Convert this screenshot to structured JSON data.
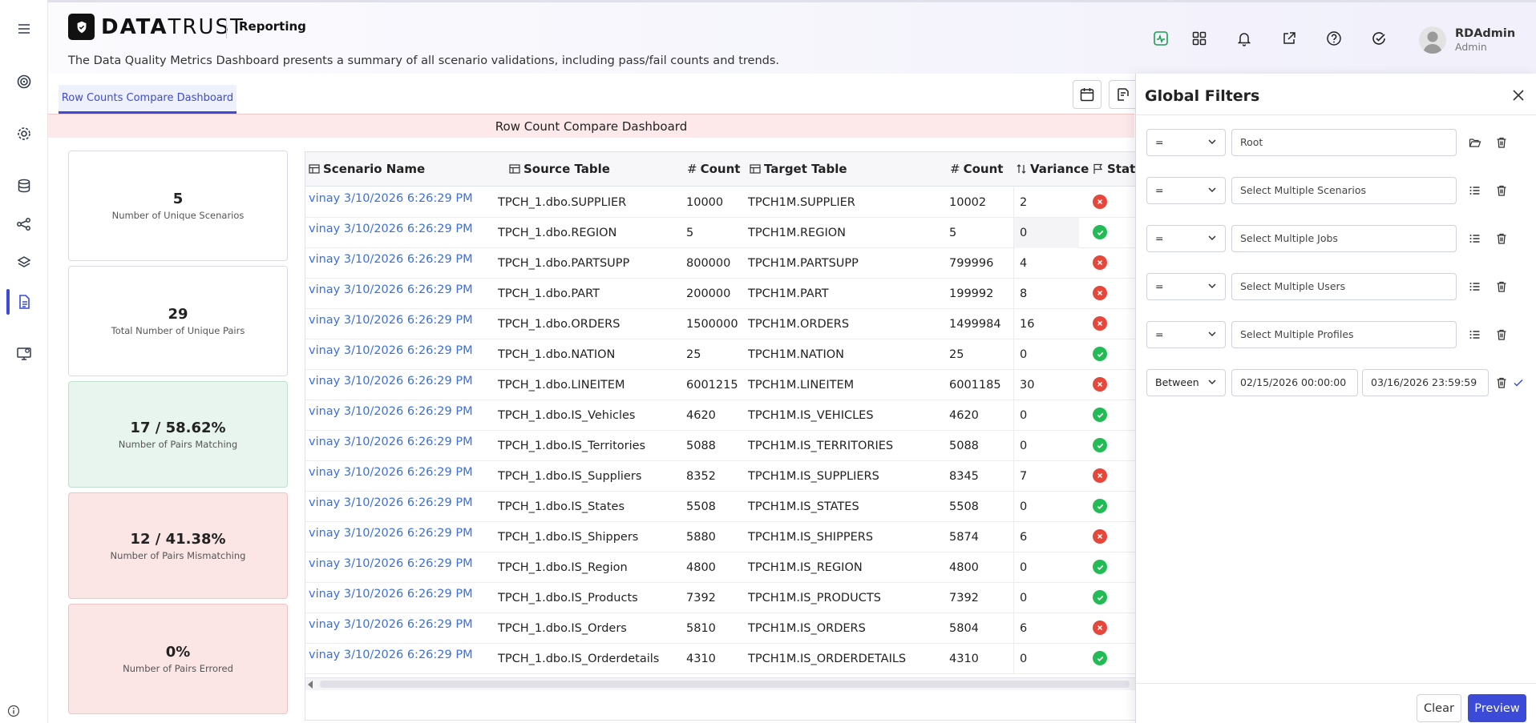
{
  "header": {
    "brand_prefix": "DATA",
    "brand_suffix": "TRUST",
    "section": "Reporting",
    "description": "The Data Quality Metrics Dashboard presents a summary of all scenario validations, including pass/fail counts and trends.",
    "user_name": "RDAdmin",
    "user_role": "Admin"
  },
  "tabs": [
    {
      "label": "Row Counts Compare Dashboard"
    }
  ],
  "dashboard_title": "Row Count Compare Dashboard",
  "cards": [
    {
      "value": "5",
      "label": "Number of Unique Scenarios"
    },
    {
      "value": "29",
      "label": "Total Number of Unique Pairs"
    },
    {
      "value": "17 / 58.62%",
      "label": "Number of Pairs Matching"
    },
    {
      "value": "12 / 41.38%",
      "label": "Number of Pairs Mismatching"
    },
    {
      "value": "0%",
      "label": "Number of Pairs Errored"
    }
  ],
  "table": {
    "headers": {
      "scenario": "Scenario Name",
      "source": "Source Table",
      "source_count": "Count",
      "target": "Target Table",
      "target_count": "Count",
      "variance": "Variance",
      "status": "Status"
    },
    "rows": [
      {
        "scenario": "vinay 3/10/2026 6:26:29 PM",
        "source": "TPCH_1.dbo.SUPPLIER",
        "source_count": "10000",
        "target": "TPCH1M.SUPPLIER",
        "target_count": "10002",
        "variance": "2",
        "status": "fail"
      },
      {
        "scenario": "vinay 3/10/2026 6:26:29 PM",
        "source": "TPCH_1.dbo.REGION",
        "source_count": "5",
        "target": "TPCH1M.REGION",
        "target_count": "5",
        "variance": "0",
        "status": "pass"
      },
      {
        "scenario": "vinay 3/10/2026 6:26:29 PM",
        "source": "TPCH_1.dbo.PARTSUPP",
        "source_count": "800000",
        "target": "TPCH1M.PARTSUPP",
        "target_count": "799996",
        "variance": "4",
        "status": "fail"
      },
      {
        "scenario": "vinay 3/10/2026 6:26:29 PM",
        "source": "TPCH_1.dbo.PART",
        "source_count": "200000",
        "target": "TPCH1M.PART",
        "target_count": "199992",
        "variance": "8",
        "status": "fail"
      },
      {
        "scenario": "vinay 3/10/2026 6:26:29 PM",
        "source": "TPCH_1.dbo.ORDERS",
        "source_count": "1500000",
        "target": "TPCH1M.ORDERS",
        "target_count": "1499984",
        "variance": "16",
        "status": "fail"
      },
      {
        "scenario": "vinay 3/10/2026 6:26:29 PM",
        "source": "TPCH_1.dbo.NATION",
        "source_count": "25",
        "target": "TPCH1M.NATION",
        "target_count": "25",
        "variance": "0",
        "status": "pass"
      },
      {
        "scenario": "vinay 3/10/2026 6:26:29 PM",
        "source": "TPCH_1.dbo.LINEITEM",
        "source_count": "6001215",
        "target": "TPCH1M.LINEITEM",
        "target_count": "6001185",
        "variance": "30",
        "status": "fail"
      },
      {
        "scenario": "vinay 3/10/2026 6:26:29 PM",
        "source": "TPCH_1.dbo.IS_Vehicles",
        "source_count": "4620",
        "target": "TPCH1M.IS_VEHICLES",
        "target_count": "4620",
        "variance": "0",
        "status": "pass"
      },
      {
        "scenario": "vinay 3/10/2026 6:26:29 PM",
        "source": "TPCH_1.dbo.IS_Territories",
        "source_count": "5088",
        "target": "TPCH1M.IS_TERRITORIES",
        "target_count": "5088",
        "variance": "0",
        "status": "pass"
      },
      {
        "scenario": "vinay 3/10/2026 6:26:29 PM",
        "source": "TPCH_1.dbo.IS_Suppliers",
        "source_count": "8352",
        "target": "TPCH1M.IS_SUPPLIERS",
        "target_count": "8345",
        "variance": "7",
        "status": "fail"
      },
      {
        "scenario": "vinay 3/10/2026 6:26:29 PM",
        "source": "TPCH_1.dbo.IS_States",
        "source_count": "5508",
        "target": "TPCH1M.IS_STATES",
        "target_count": "5508",
        "variance": "0",
        "status": "pass"
      },
      {
        "scenario": "vinay 3/10/2026 6:26:29 PM",
        "source": "TPCH_1.dbo.IS_Shippers",
        "source_count": "5880",
        "target": "TPCH1M.IS_SHIPPERS",
        "target_count": "5874",
        "variance": "6",
        "status": "fail"
      },
      {
        "scenario": "vinay 3/10/2026 6:26:29 PM",
        "source": "TPCH_1.dbo.IS_Region",
        "source_count": "4800",
        "target": "TPCH1M.IS_REGION",
        "target_count": "4800",
        "variance": "0",
        "status": "pass"
      },
      {
        "scenario": "vinay 3/10/2026 6:26:29 PM",
        "source": "TPCH_1.dbo.IS_Products",
        "source_count": "7392",
        "target": "TPCH1M.IS_PRODUCTS",
        "target_count": "7392",
        "variance": "0",
        "status": "pass"
      },
      {
        "scenario": "vinay 3/10/2026 6:26:29 PM",
        "source": "TPCH_1.dbo.IS_Orders",
        "source_count": "5810",
        "target": "TPCH1M.IS_ORDERS",
        "target_count": "5804",
        "variance": "6",
        "status": "fail"
      },
      {
        "scenario": "vinay 3/10/2026 6:26:29 PM",
        "source": "TPCH_1.dbo.IS_Orderdetails",
        "source_count": "4310",
        "target": "TPCH1M.IS_ORDERDETAILS",
        "target_count": "4310",
        "variance": "0",
        "status": "pass"
      }
    ]
  },
  "filters": {
    "title": "Global Filters",
    "rows": [
      {
        "operator": "=",
        "value": "Root"
      },
      {
        "operator": "=",
        "value": "Select Multiple Scenarios"
      },
      {
        "operator": "=",
        "value": "Select Multiple Jobs"
      },
      {
        "operator": "=",
        "value": "Select Multiple Users"
      },
      {
        "operator": "=",
        "value": "Select Multiple Profiles"
      }
    ],
    "date_filter": {
      "operator": "Between",
      "from": "02/15/2026 00:00:00",
      "to": "03/16/2026 23:59:59"
    },
    "clear_label": "Clear",
    "preview_label": "Preview"
  },
  "colors": {
    "accent": "#3b4bd8",
    "link": "#3b6fd9",
    "pass": "#22bb55",
    "fail": "#e7463b"
  }
}
